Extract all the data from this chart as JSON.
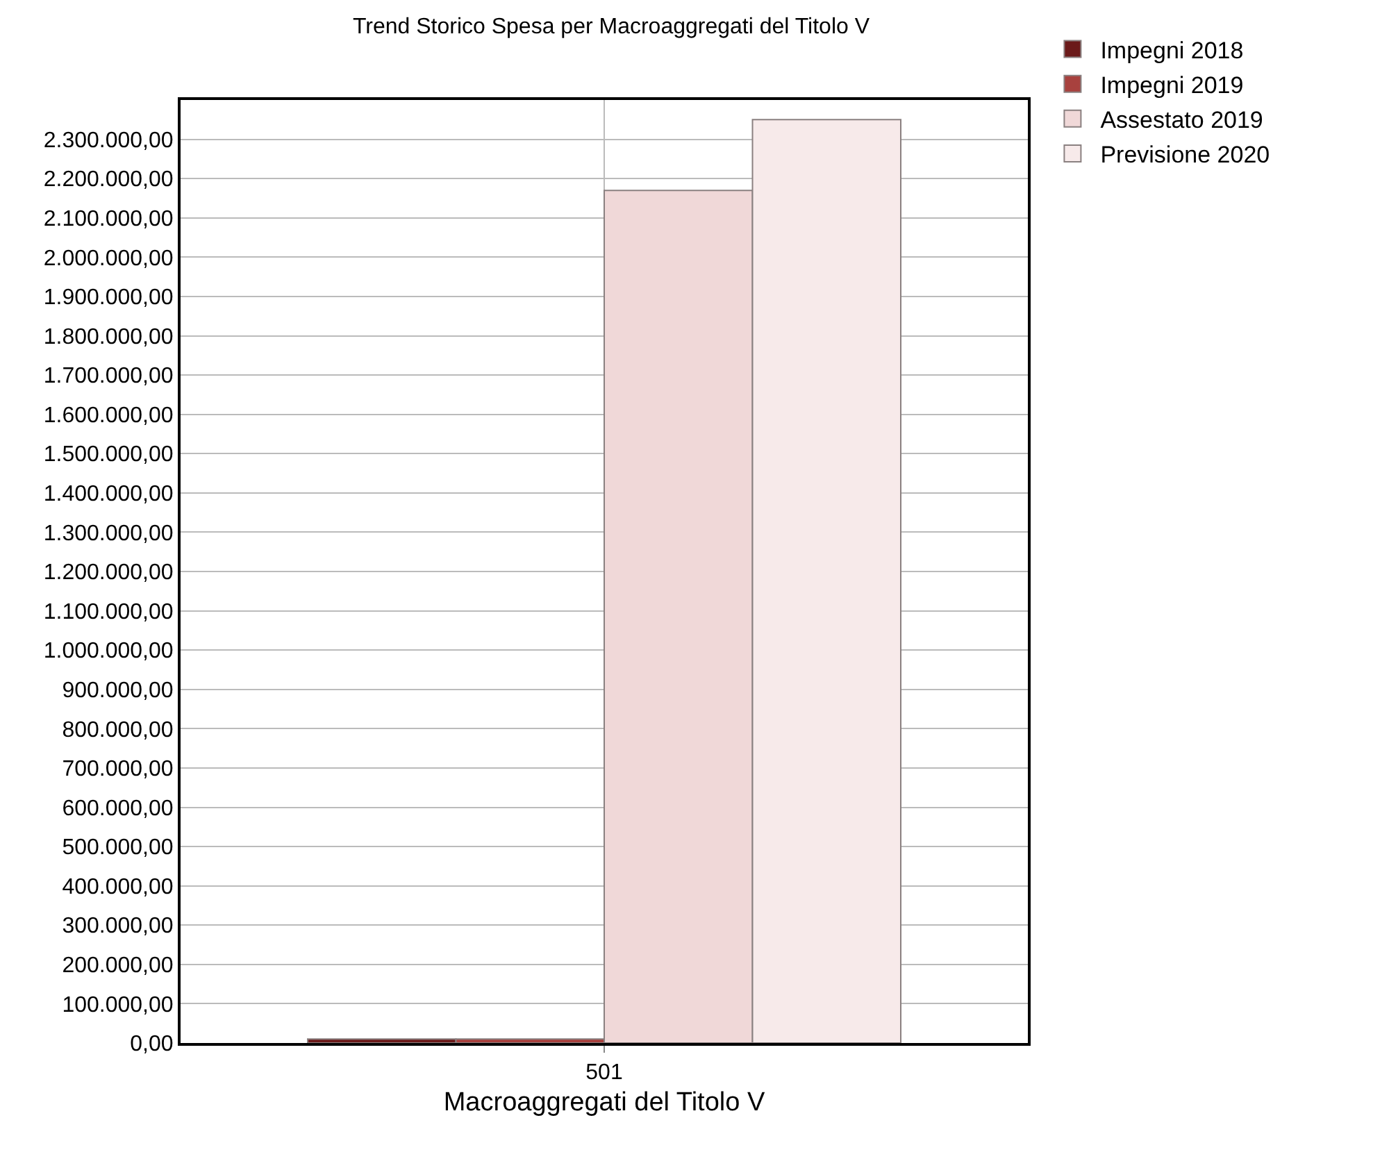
{
  "chart_data": {
    "type": "bar",
    "title": "Trend Storico Spesa per Macroaggregati del Titolo V",
    "xlabel": "Macroaggregati del Titolo V",
    "categories": [
      "501"
    ],
    "series": [
      {
        "name": "Impegni 2018",
        "color": "#6b1a1a",
        "values": [
          10000
        ]
      },
      {
        "name": "Impegni 2019",
        "color": "#a8413e",
        "values": [
          10000
        ]
      },
      {
        "name": "Assestato 2019",
        "color": "#f0d8d8",
        "values": [
          2170000
        ]
      },
      {
        "name": "Previsione 2020",
        "color": "#f7eaea",
        "values": [
          2350000
        ]
      }
    ],
    "ylim": [
      0,
      2400000
    ],
    "yticks": [
      {
        "value": 0,
        "label": "0,00"
      },
      {
        "value": 100000,
        "label": "100.000,00"
      },
      {
        "value": 200000,
        "label": "200.000,00"
      },
      {
        "value": 300000,
        "label": "300.000,00"
      },
      {
        "value": 400000,
        "label": "400.000,00"
      },
      {
        "value": 500000,
        "label": "500.000,00"
      },
      {
        "value": 600000,
        "label": "600.000,00"
      },
      {
        "value": 700000,
        "label": "700.000,00"
      },
      {
        "value": 800000,
        "label": "800.000,00"
      },
      {
        "value": 900000,
        "label": "900.000,00"
      },
      {
        "value": 1000000,
        "label": "1.000.000,00"
      },
      {
        "value": 1100000,
        "label": "1.100.000,00"
      },
      {
        "value": 1200000,
        "label": "1.200.000,00"
      },
      {
        "value": 1300000,
        "label": "1.300.000,00"
      },
      {
        "value": 1400000,
        "label": "1.400.000,00"
      },
      {
        "value": 1500000,
        "label": "1.500.000,00"
      },
      {
        "value": 1600000,
        "label": "1.600.000,00"
      },
      {
        "value": 1700000,
        "label": "1.700.000,00"
      },
      {
        "value": 1800000,
        "label": "1.800.000,00"
      },
      {
        "value": 1900000,
        "label": "1.900.000,00"
      },
      {
        "value": 2000000,
        "label": "2.000.000,00"
      },
      {
        "value": 2100000,
        "label": "2.100.000,00"
      },
      {
        "value": 2200000,
        "label": "2.200.000,00"
      },
      {
        "value": 2300000,
        "label": "2.300.000,00"
      }
    ],
    "grid": true,
    "legend": "top right"
  }
}
